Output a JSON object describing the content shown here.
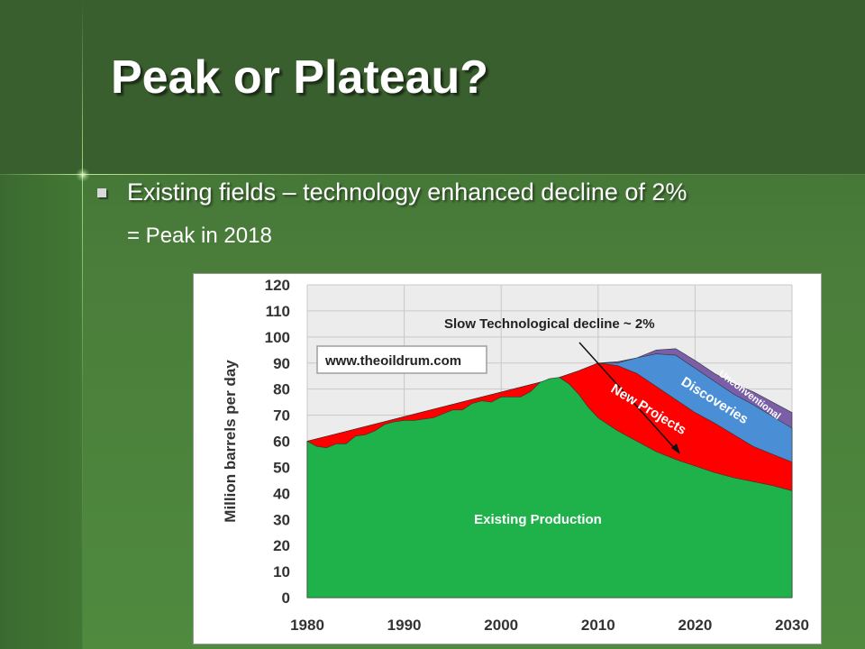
{
  "slide": {
    "title": "Peak or Plateau?",
    "bullet": "Existing fields – technology enhanced decline of 2%",
    "subline": "= Peak in 2018"
  },
  "colors": {
    "existing": "#1fb24b",
    "new_projects": "#ff0000",
    "discoveries": "#4a8fd6",
    "unconventional": "#7a5fa8",
    "grid": "#c8c8c8",
    "plot_bg": "#ececec"
  },
  "chart_data": {
    "type": "area",
    "stacked": true,
    "title": "",
    "xlabel": "",
    "ylabel": "Million barrels per day",
    "xlim": [
      1980,
      2030
    ],
    "ylim": [
      0,
      120
    ],
    "xticks": [
      1980,
      1990,
      2000,
      2010,
      2020,
      2030
    ],
    "yticks": [
      0,
      10,
      20,
      30,
      40,
      50,
      60,
      70,
      80,
      90,
      100,
      110,
      120
    ],
    "grid": true,
    "series": [
      {
        "name": "Existing Production",
        "points": [
          [
            1980,
            60
          ],
          [
            1981,
            58
          ],
          [
            1982,
            57.5
          ],
          [
            1983,
            59
          ],
          [
            1984,
            59
          ],
          [
            1985,
            62
          ],
          [
            1986,
            62.5
          ],
          [
            1987,
            64
          ],
          [
            1988,
            66.5
          ],
          [
            1989,
            67.5
          ],
          [
            1990,
            68
          ],
          [
            1991,
            68
          ],
          [
            1992,
            68.5
          ],
          [
            1993,
            69
          ],
          [
            1994,
            70.5
          ],
          [
            1995,
            72
          ],
          [
            1996,
            72
          ],
          [
            1997,
            74.5
          ],
          [
            1998,
            75.5
          ],
          [
            1999,
            75
          ],
          [
            2000,
            77
          ],
          [
            2001,
            77
          ],
          [
            2002,
            77
          ],
          [
            2003,
            79
          ],
          [
            2004,
            82.5
          ],
          [
            2005,
            84
          ],
          [
            2006,
            84.5
          ],
          [
            2007,
            82
          ],
          [
            2008,
            78
          ],
          [
            2009,
            73
          ],
          [
            2010,
            69
          ],
          [
            2012,
            64
          ],
          [
            2014,
            60
          ],
          [
            2016,
            56
          ],
          [
            2018,
            53
          ],
          [
            2020,
            50.5
          ],
          [
            2022,
            48
          ],
          [
            2024,
            46
          ],
          [
            2026,
            44.5
          ],
          [
            2028,
            43
          ],
          [
            2030,
            41
          ]
        ]
      },
      {
        "name": "New Projects",
        "points": [
          [
            1980,
            60
          ],
          [
            2006,
            84.5
          ],
          [
            2008,
            87
          ],
          [
            2010,
            90
          ],
          [
            2012,
            89
          ],
          [
            2014,
            86
          ],
          [
            2016,
            81
          ],
          [
            2018,
            76
          ],
          [
            2020,
            71
          ],
          [
            2022,
            67
          ],
          [
            2024,
            62.5
          ],
          [
            2026,
            58
          ],
          [
            2028,
            55
          ],
          [
            2030,
            52
          ]
        ]
      },
      {
        "name": "Discoveries",
        "points": [
          [
            1980,
            60
          ],
          [
            2006,
            84.5
          ],
          [
            2008,
            87
          ],
          [
            2010,
            90
          ],
          [
            2012,
            90
          ],
          [
            2014,
            92
          ],
          [
            2016,
            93.5
          ],
          [
            2018,
            93
          ],
          [
            2020,
            88
          ],
          [
            2022,
            83
          ],
          [
            2024,
            78
          ],
          [
            2026,
            74
          ],
          [
            2028,
            69.5
          ],
          [
            2030,
            65
          ]
        ]
      },
      {
        "name": "Unconventional",
        "points": [
          [
            1980,
            60
          ],
          [
            2006,
            84.5
          ],
          [
            2008,
            87
          ],
          [
            2010,
            90
          ],
          [
            2012,
            90.5
          ],
          [
            2014,
            92
          ],
          [
            2016,
            95
          ],
          [
            2018,
            95.5
          ],
          [
            2020,
            91
          ],
          [
            2022,
            86
          ],
          [
            2024,
            82
          ],
          [
            2026,
            79
          ],
          [
            2028,
            75
          ],
          [
            2030,
            71
          ]
        ]
      }
    ],
    "annotations": {
      "watermark": "www.theoildrum.com",
      "arrow_label": "Slow Technological decline ~ 2%"
    }
  }
}
